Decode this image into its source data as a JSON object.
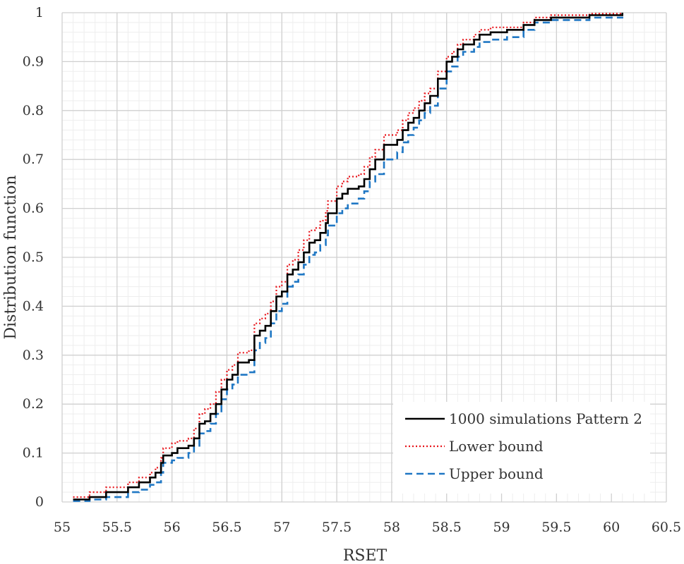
{
  "chart_data": {
    "type": "line",
    "xlabel": "RSET",
    "ylabel": "Distribution function",
    "xlim": [
      55,
      60.5
    ],
    "ylim": [
      0,
      1
    ],
    "x_ticks": [
      "55",
      "55.5",
      "56",
      "56.5",
      "57",
      "57.5",
      "58",
      "58.5",
      "59",
      "59.5",
      "60",
      "60.5"
    ],
    "y_ticks": [
      "0",
      "0.1",
      "0.2",
      "0.3",
      "0.4",
      "0.5",
      "0.6",
      "0.7",
      "0.8",
      "0.9",
      "1"
    ],
    "grid": true,
    "legend_position": "bottom-right",
    "series": [
      {
        "name": "1000 simulations Pattern 2",
        "style": "solid",
        "color": "#000000",
        "points": [
          [
            55.1,
            0.005
          ],
          [
            55.25,
            0.01
          ],
          [
            55.4,
            0.02
          ],
          [
            55.6,
            0.03
          ],
          [
            55.7,
            0.04
          ],
          [
            55.8,
            0.05
          ],
          [
            55.85,
            0.06
          ],
          [
            55.9,
            0.08
          ],
          [
            55.92,
            0.095
          ],
          [
            56.0,
            0.1
          ],
          [
            56.05,
            0.11
          ],
          [
            56.15,
            0.115
          ],
          [
            56.2,
            0.13
          ],
          [
            56.25,
            0.16
          ],
          [
            56.3,
            0.165
          ],
          [
            56.35,
            0.18
          ],
          [
            56.4,
            0.2
          ],
          [
            56.45,
            0.23
          ],
          [
            56.5,
            0.25
          ],
          [
            56.55,
            0.26
          ],
          [
            56.6,
            0.285
          ],
          [
            56.7,
            0.29
          ],
          [
            56.75,
            0.34
          ],
          [
            56.8,
            0.35
          ],
          [
            56.85,
            0.36
          ],
          [
            56.9,
            0.39
          ],
          [
            56.95,
            0.42
          ],
          [
            57.0,
            0.43
          ],
          [
            57.05,
            0.465
          ],
          [
            57.1,
            0.475
          ],
          [
            57.15,
            0.49
          ],
          [
            57.2,
            0.51
          ],
          [
            57.25,
            0.53
          ],
          [
            57.3,
            0.535
          ],
          [
            57.35,
            0.55
          ],
          [
            57.4,
            0.57
          ],
          [
            57.42,
            0.59
          ],
          [
            57.5,
            0.62
          ],
          [
            57.55,
            0.63
          ],
          [
            57.6,
            0.64
          ],
          [
            57.7,
            0.645
          ],
          [
            57.75,
            0.66
          ],
          [
            57.8,
            0.68
          ],
          [
            57.85,
            0.7
          ],
          [
            57.93,
            0.73
          ],
          [
            58.05,
            0.74
          ],
          [
            58.1,
            0.76
          ],
          [
            58.15,
            0.775
          ],
          [
            58.2,
            0.785
          ],
          [
            58.25,
            0.8
          ],
          [
            58.3,
            0.815
          ],
          [
            58.35,
            0.83
          ],
          [
            58.42,
            0.865
          ],
          [
            58.5,
            0.9
          ],
          [
            58.55,
            0.91
          ],
          [
            58.6,
            0.925
          ],
          [
            58.65,
            0.935
          ],
          [
            58.75,
            0.945
          ],
          [
            58.8,
            0.955
          ],
          [
            58.9,
            0.96
          ],
          [
            59.05,
            0.965
          ],
          [
            59.2,
            0.975
          ],
          [
            59.3,
            0.985
          ],
          [
            59.45,
            0.99
          ],
          [
            59.8,
            0.995
          ],
          [
            60.1,
            1.0
          ]
        ]
      },
      {
        "name": "Lower bound",
        "style": "dotted",
        "color": "#e8161c",
        "points": [
          [
            55.1,
            0.01
          ],
          [
            55.25,
            0.02
          ],
          [
            55.4,
            0.03
          ],
          [
            55.6,
            0.04
          ],
          [
            55.7,
            0.05
          ],
          [
            55.8,
            0.06
          ],
          [
            55.85,
            0.07
          ],
          [
            55.9,
            0.09
          ],
          [
            55.92,
            0.11
          ],
          [
            56.0,
            0.12
          ],
          [
            56.05,
            0.125
          ],
          [
            56.15,
            0.13
          ],
          [
            56.2,
            0.15
          ],
          [
            56.25,
            0.18
          ],
          [
            56.3,
            0.19
          ],
          [
            56.35,
            0.2
          ],
          [
            56.4,
            0.225
          ],
          [
            56.45,
            0.25
          ],
          [
            56.5,
            0.27
          ],
          [
            56.55,
            0.28
          ],
          [
            56.6,
            0.305
          ],
          [
            56.7,
            0.31
          ],
          [
            56.75,
            0.365
          ],
          [
            56.8,
            0.375
          ],
          [
            56.85,
            0.385
          ],
          [
            56.9,
            0.41
          ],
          [
            56.95,
            0.44
          ],
          [
            57.0,
            0.45
          ],
          [
            57.05,
            0.485
          ],
          [
            57.1,
            0.495
          ],
          [
            57.15,
            0.515
          ],
          [
            57.2,
            0.535
          ],
          [
            57.25,
            0.555
          ],
          [
            57.3,
            0.56
          ],
          [
            57.35,
            0.575
          ],
          [
            57.4,
            0.595
          ],
          [
            57.42,
            0.615
          ],
          [
            57.5,
            0.645
          ],
          [
            57.55,
            0.655
          ],
          [
            57.6,
            0.665
          ],
          [
            57.7,
            0.67
          ],
          [
            57.75,
            0.685
          ],
          [
            57.8,
            0.705
          ],
          [
            57.85,
            0.72
          ],
          [
            57.93,
            0.75
          ],
          [
            58.05,
            0.76
          ],
          [
            58.1,
            0.78
          ],
          [
            58.15,
            0.795
          ],
          [
            58.2,
            0.805
          ],
          [
            58.25,
            0.82
          ],
          [
            58.3,
            0.835
          ],
          [
            58.35,
            0.845
          ],
          [
            58.42,
            0.88
          ],
          [
            58.5,
            0.91
          ],
          [
            58.55,
            0.92
          ],
          [
            58.6,
            0.935
          ],
          [
            58.65,
            0.945
          ],
          [
            58.75,
            0.955
          ],
          [
            58.8,
            0.965
          ],
          [
            58.9,
            0.97
          ],
          [
            59.05,
            0.97
          ],
          [
            59.2,
            0.98
          ],
          [
            59.3,
            0.99
          ],
          [
            59.45,
            0.995
          ],
          [
            59.8,
            0.998
          ],
          [
            60.1,
            1.0
          ]
        ]
      },
      {
        "name": "Upper bound",
        "style": "dashed",
        "color": "#1f77c4",
        "points": [
          [
            55.1,
            0.002
          ],
          [
            55.25,
            0.005
          ],
          [
            55.4,
            0.01
          ],
          [
            55.6,
            0.02
          ],
          [
            55.7,
            0.025
          ],
          [
            55.8,
            0.035
          ],
          [
            55.85,
            0.04
          ],
          [
            55.9,
            0.06
          ],
          [
            55.92,
            0.08
          ],
          [
            56.0,
            0.085
          ],
          [
            56.05,
            0.09
          ],
          [
            56.15,
            0.1
          ],
          [
            56.2,
            0.115
          ],
          [
            56.25,
            0.14
          ],
          [
            56.3,
            0.145
          ],
          [
            56.35,
            0.16
          ],
          [
            56.4,
            0.18
          ],
          [
            56.45,
            0.21
          ],
          [
            56.5,
            0.23
          ],
          [
            56.55,
            0.24
          ],
          [
            56.6,
            0.26
          ],
          [
            56.7,
            0.265
          ],
          [
            56.75,
            0.31
          ],
          [
            56.8,
            0.325
          ],
          [
            56.85,
            0.335
          ],
          [
            56.9,
            0.365
          ],
          [
            56.95,
            0.39
          ],
          [
            57.0,
            0.405
          ],
          [
            57.05,
            0.44
          ],
          [
            57.1,
            0.45
          ],
          [
            57.15,
            0.465
          ],
          [
            57.2,
            0.485
          ],
          [
            57.25,
            0.505
          ],
          [
            57.3,
            0.51
          ],
          [
            57.35,
            0.525
          ],
          [
            57.4,
            0.545
          ],
          [
            57.42,
            0.565
          ],
          [
            57.5,
            0.59
          ],
          [
            57.55,
            0.6
          ],
          [
            57.6,
            0.61
          ],
          [
            57.7,
            0.62
          ],
          [
            57.75,
            0.635
          ],
          [
            57.8,
            0.655
          ],
          [
            57.85,
            0.67
          ],
          [
            57.93,
            0.7
          ],
          [
            58.05,
            0.715
          ],
          [
            58.1,
            0.735
          ],
          [
            58.15,
            0.75
          ],
          [
            58.2,
            0.765
          ],
          [
            58.25,
            0.78
          ],
          [
            58.3,
            0.795
          ],
          [
            58.35,
            0.81
          ],
          [
            58.42,
            0.845
          ],
          [
            58.5,
            0.88
          ],
          [
            58.55,
            0.89
          ],
          [
            58.6,
            0.91
          ],
          [
            58.65,
            0.92
          ],
          [
            58.75,
            0.93
          ],
          [
            58.8,
            0.94
          ],
          [
            58.9,
            0.945
          ],
          [
            59.05,
            0.95
          ],
          [
            59.2,
            0.965
          ],
          [
            59.3,
            0.98
          ],
          [
            59.45,
            0.985
          ],
          [
            59.8,
            0.99
          ],
          [
            60.1,
            0.992
          ]
        ]
      }
    ]
  }
}
